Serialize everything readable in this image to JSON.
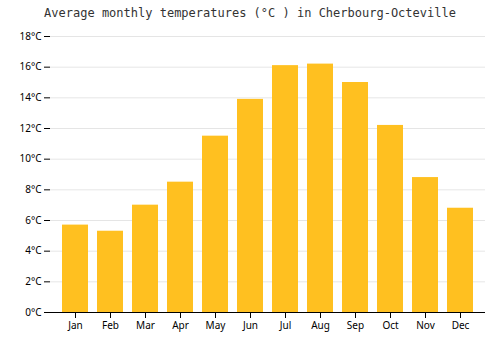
{
  "chart_data": {
    "type": "bar",
    "title": "Average monthly temperatures (°C ) in Cherbourg-Octeville",
    "categories": [
      "Jan",
      "Feb",
      "Mar",
      "Apr",
      "May",
      "Jun",
      "Jul",
      "Aug",
      "Sep",
      "Oct",
      "Nov",
      "Dec"
    ],
    "values": [
      5.7,
      5.3,
      7.0,
      8.5,
      11.5,
      13.9,
      16.1,
      16.2,
      15.0,
      12.2,
      8.8,
      6.8
    ],
    "color": "#FFC020",
    "ylim": [
      0,
      18
    ],
    "yticks": [
      {
        "value": 0,
        "label": "0°C"
      },
      {
        "value": 2,
        "label": "2°C"
      },
      {
        "value": 4,
        "label": "4°C"
      },
      {
        "value": 6,
        "label": "6°C"
      },
      {
        "value": 8,
        "label": "8°C"
      },
      {
        "value": 10,
        "label": "10°C"
      },
      {
        "value": 12,
        "label": "12°C"
      },
      {
        "value": 14,
        "label": "14°C"
      },
      {
        "value": 16,
        "label": "16°C"
      },
      {
        "value": 18,
        "label": "18°C"
      }
    ],
    "grid": true
  }
}
